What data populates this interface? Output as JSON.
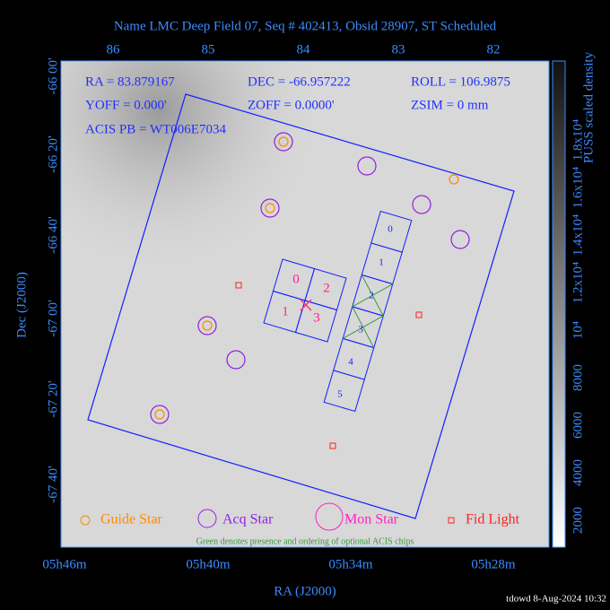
{
  "header": {
    "title": "Name LMC Deep Field 07, Seq # 402413, Obsid 28907, ST Scheduled"
  },
  "axes": {
    "top_ticks": [
      "86",
      "85",
      "84",
      "83",
      "82"
    ],
    "left_ticks": [
      "-66 00'",
      "-66 20'",
      "-66 40'",
      "-67 00'",
      "-67 20'",
      "-67 40'"
    ],
    "bottom_ticks": [
      "05h46m",
      "05h40m",
      "05h34m",
      "05h28m"
    ],
    "x_title": "RA (J2000)",
    "y_title": "Dec (J2000)"
  },
  "info": [
    "RA = 83.879167",
    "DEC = -66.957222",
    "ROLL = 106.9875",
    "YOFF =   0.000'",
    "ZOFF =   0.0000'",
    "ZSIM = 0 mm",
    "ACIS PB = WT006E7034"
  ],
  "chips": {
    "i_array": [
      "0",
      "2",
      "1",
      "3"
    ],
    "s_array": [
      "0",
      "1",
      "2",
      "3",
      "4",
      "5"
    ]
  },
  "legend": [
    "Guide Star",
    "Acq Star",
    "Mon Star",
    "Fid Light"
  ],
  "note": "Green denotes presence and ordering of optional ACIS chips",
  "colorbar": {
    "title": "PUSS scaled density",
    "ticks": [
      "2000",
      "4000",
      "6000",
      "8000",
      "10⁴",
      "1.2x10⁴",
      "1.4x10⁴",
      "1.6x10⁴",
      "1.8x10⁴"
    ]
  },
  "footer": "tdowd  8-Aug-2024 10:32"
}
